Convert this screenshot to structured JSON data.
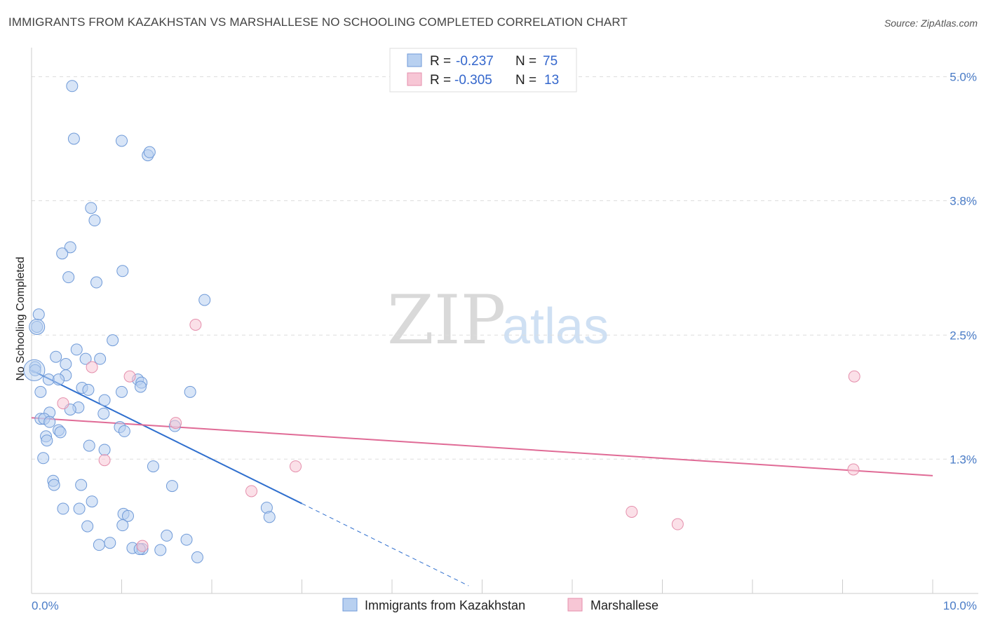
{
  "title": "IMMIGRANTS FROM KAZAKHSTAN VS MARSHALLESE NO SCHOOLING COMPLETED CORRELATION CHART",
  "source": "Source: ZipAtlas.com",
  "colors": {
    "blue": "#4a7cc7",
    "blue_fill": "#b8d0f0",
    "blue_line": "#2f6fce",
    "pink_fill": "#f7c6d5",
    "pink_line": "#e06b96",
    "tick_text": "#4a7cc7"
  },
  "watermark": {
    "part1": "ZIP",
    "part2": "atlas"
  },
  "legend_top": [
    {
      "r_label": "R =",
      "r_value": "-0.237",
      "n_label": "N =",
      "n_value": "75"
    },
    {
      "r_label": "R =",
      "r_value": "-0.305",
      "n_label": "N =",
      "n_value": "13"
    }
  ],
  "legend_bottom": [
    "Immigrants from Kazakhstan",
    "Marshallese"
  ],
  "chart_data": {
    "type": "scatter",
    "title": "IMMIGRANTS FROM KAZAKHSTAN VS MARSHALLESE NO SCHOOLING COMPLETED CORRELATION CHART",
    "xlabel": "",
    "ylabel": "No Schooling Completed",
    "xlim": [
      0,
      10
    ],
    "ylim": [
      0,
      5.2
    ],
    "x_tick_labels": [
      "0.0%",
      "10.0%"
    ],
    "y_ticks": [
      1.3,
      2.5,
      3.8,
      5.0
    ],
    "y_tick_labels": [
      "1.3%",
      "2.5%",
      "3.8%",
      "5.0%"
    ],
    "grid": true,
    "series": [
      {
        "name": "Immigrants from Kazakhstan",
        "points": [
          [
            0.45,
            4.91
          ],
          [
            0.47,
            4.4
          ],
          [
            1.0,
            4.38
          ],
          [
            1.29,
            4.24
          ],
          [
            1.31,
            4.27
          ],
          [
            0.66,
            3.73
          ],
          [
            0.7,
            3.61
          ],
          [
            0.43,
            3.35
          ],
          [
            0.34,
            3.29
          ],
          [
            1.01,
            3.12
          ],
          [
            0.41,
            3.06
          ],
          [
            0.72,
            3.01
          ],
          [
            0.08,
            2.7
          ],
          [
            0.06,
            2.58
          ],
          [
            1.92,
            2.84
          ],
          [
            0.9,
            2.45
          ],
          [
            0.5,
            2.36
          ],
          [
            0.27,
            2.29
          ],
          [
            0.6,
            2.27
          ],
          [
            0.76,
            2.27
          ],
          [
            0.38,
            2.22
          ],
          [
            0.04,
            2.19
          ],
          [
            0.04,
            2.16
          ],
          [
            0.38,
            2.11
          ],
          [
            0.19,
            2.07
          ],
          [
            0.3,
            2.07
          ],
          [
            1.18,
            2.07
          ],
          [
            1.22,
            2.04
          ],
          [
            1.21,
            2.0
          ],
          [
            0.56,
            1.99
          ],
          [
            0.63,
            1.97
          ],
          [
            1.0,
            1.95
          ],
          [
            0.1,
            1.95
          ],
          [
            1.76,
            1.95
          ],
          [
            0.81,
            1.87
          ],
          [
            0.52,
            1.8
          ],
          [
            0.43,
            1.78
          ],
          [
            0.2,
            1.75
          ],
          [
            0.8,
            1.74
          ],
          [
            0.1,
            1.69
          ],
          [
            0.14,
            1.69
          ],
          [
            0.2,
            1.66
          ],
          [
            0.98,
            1.61
          ],
          [
            1.59,
            1.62
          ],
          [
            1.03,
            1.57
          ],
          [
            0.3,
            1.58
          ],
          [
            0.32,
            1.56
          ],
          [
            0.16,
            1.52
          ],
          [
            0.17,
            1.48
          ],
          [
            0.64,
            1.43
          ],
          [
            0.81,
            1.39
          ],
          [
            0.13,
            1.31
          ],
          [
            1.35,
            1.23
          ],
          [
            0.24,
            1.09
          ],
          [
            0.25,
            1.05
          ],
          [
            0.55,
            1.05
          ],
          [
            1.56,
            1.04
          ],
          [
            0.67,
            0.89
          ],
          [
            0.35,
            0.82
          ],
          [
            0.53,
            0.82
          ],
          [
            1.02,
            0.77
          ],
          [
            1.07,
            0.75
          ],
          [
            2.61,
            0.83
          ],
          [
            2.64,
            0.74
          ],
          [
            1.01,
            0.66
          ],
          [
            0.62,
            0.65
          ],
          [
            1.5,
            0.56
          ],
          [
            1.72,
            0.52
          ],
          [
            0.87,
            0.49
          ],
          [
            0.75,
            0.47
          ],
          [
            1.12,
            0.44
          ],
          [
            1.23,
            0.43
          ],
          [
            1.2,
            0.43
          ],
          [
            1.43,
            0.42
          ],
          [
            1.84,
            0.35
          ]
        ]
      },
      {
        "name": "Marshallese",
        "points": [
          [
            1.82,
            2.6
          ],
          [
            0.67,
            2.19
          ],
          [
            1.09,
            2.1
          ],
          [
            0.35,
            1.84
          ],
          [
            1.6,
            1.65
          ],
          [
            0.81,
            1.29
          ],
          [
            2.93,
            1.23
          ],
          [
            9.13,
            2.1
          ],
          [
            9.12,
            1.2
          ],
          [
            2.44,
            0.99
          ],
          [
            6.66,
            0.79
          ],
          [
            7.17,
            0.67
          ],
          [
            1.23,
            0.46
          ]
        ]
      }
    ],
    "trendlines": [
      {
        "series": "Immigrants from Kazakhstan",
        "x0": 0.0,
        "y0": 2.16,
        "x1": 3.0,
        "y1": 0.87,
        "dashed_to_x": 4.85
      },
      {
        "series": "Marshallese",
        "x0": 0.0,
        "y0": 1.7,
        "x1": 10.0,
        "y1": 1.14
      }
    ]
  }
}
